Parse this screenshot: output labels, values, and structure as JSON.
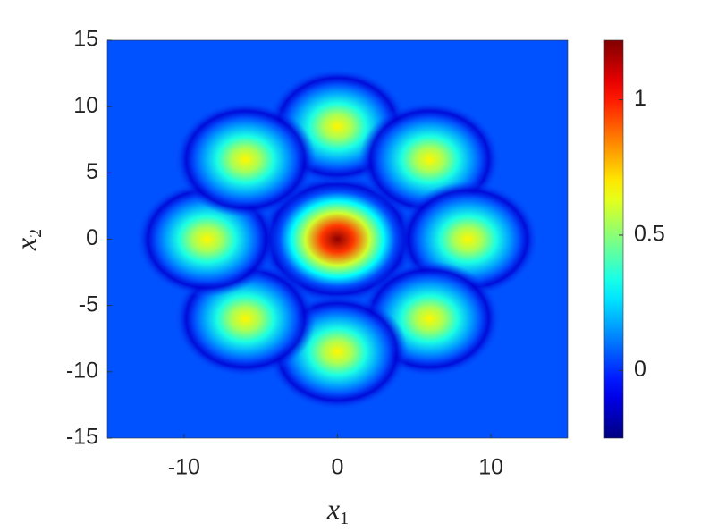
{
  "chart_data": {
    "type": "heatmap",
    "xlabel": {
      "symbol": "x",
      "subscript": "1"
    },
    "ylabel": {
      "symbol": "x",
      "subscript": "2"
    },
    "xlim": [
      -15,
      15
    ],
    "ylim": [
      -15,
      15
    ],
    "xticks": [
      -10,
      0,
      10
    ],
    "yticks": [
      -15,
      -10,
      -5,
      0,
      5,
      10,
      15
    ],
    "colormap": "jet",
    "clim": [
      -0.25,
      1.22
    ],
    "cticks": [
      0,
      0.5,
      1
    ],
    "background": 0.05,
    "x": [
      0,
      0,
      6,
      8.5,
      6,
      0,
      -6,
      -8.5,
      -6
    ],
    "y": [
      0,
      8.5,
      6,
      0,
      -6,
      -8.5,
      -6,
      0,
      6
    ],
    "values": [
      1.2,
      0.68,
      0.68,
      0.68,
      0.68,
      0.68,
      0.68,
      0.68,
      0.68
    ]
  }
}
